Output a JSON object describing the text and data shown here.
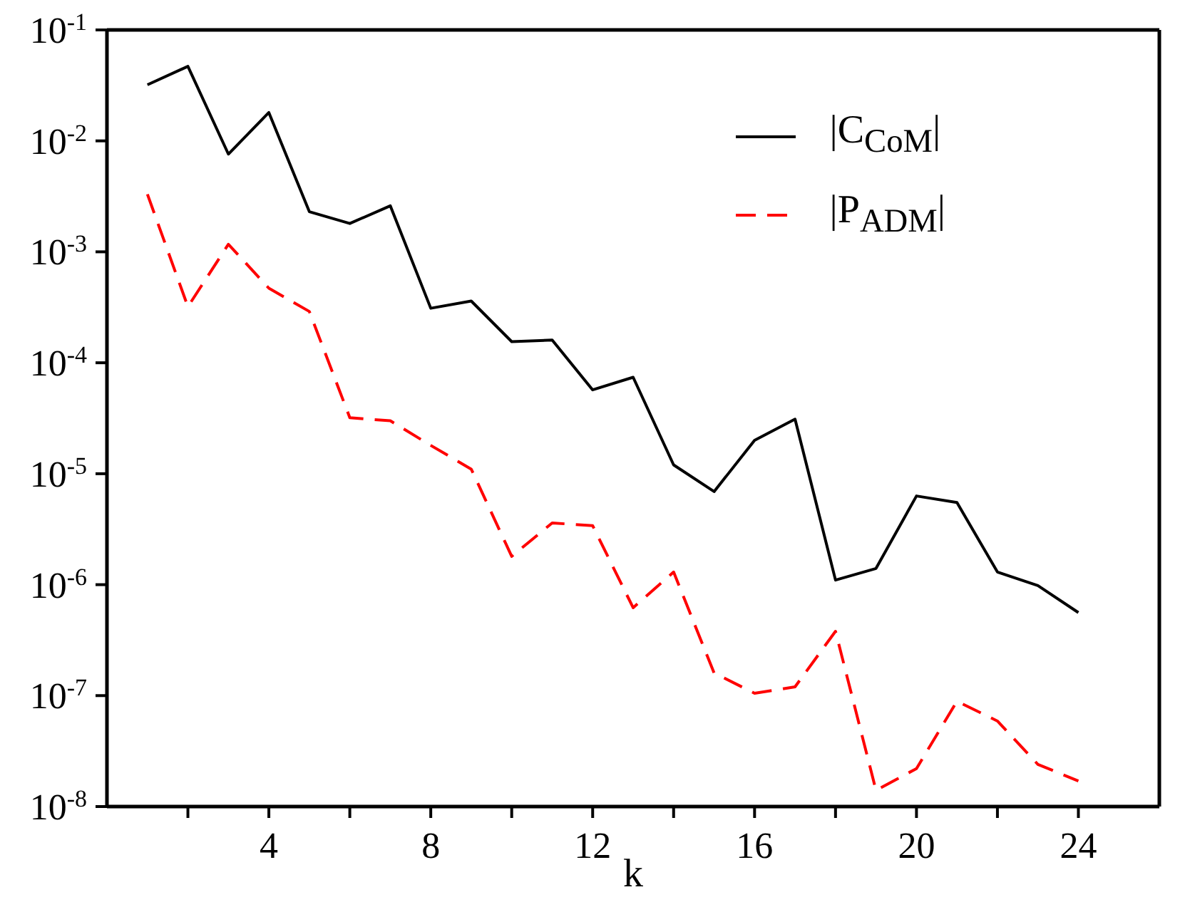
{
  "chart_data": {
    "type": "line",
    "xlabel": "k",
    "log": "y",
    "legend": "top right",
    "marker": "none",
    "x": [
      1,
      2,
      3,
      4,
      5,
      6,
      7,
      8,
      9,
      10,
      11,
      12,
      13,
      14,
      15,
      16,
      17,
      18,
      19,
      20,
      21,
      22,
      23,
      24
    ],
    "xlim": [
      0,
      26
    ],
    "xticks": [
      {
        "value": 2,
        "label": null
      },
      4,
      {
        "value": 6,
        "label": null
      },
      8,
      {
        "value": 10,
        "label": null
      },
      12,
      {
        "value": 14,
        "label": null
      },
      16,
      {
        "value": 18,
        "label": null
      },
      20,
      {
        "value": 22,
        "label": null
      },
      24
    ],
    "ylim": [
      1e-08,
      0.1
    ],
    "yticks": [
      {
        "value": 1e-08,
        "label": "10$^{-8}$"
      },
      {
        "value": 1e-07,
        "label": "10$^{-7}$"
      },
      {
        "value": 1e-06,
        "label": "10$^{-6}$"
      },
      {
        "value": 1e-05,
        "label": "10$^{-5}$"
      },
      {
        "value": 0.0001,
        "label": "10$^{-4}$"
      },
      {
        "value": 0.001,
        "label": "10$^{-3}$"
      },
      {
        "value": 0.01,
        "label": "10$^{-2}$"
      },
      {
        "value": 0.1,
        "label": "10$^{-1}$"
      }
    ],
    "series": [
      {
        "name": "|C$_{CoM}$|",
        "color": "#000000",
        "line_style": "solid",
        "values": [
          0.032,
          0.047,
          0.0076,
          0.018,
          0.0023,
          0.0018,
          0.0026,
          0.00031,
          0.00036,
          0.000155,
          0.00016,
          5.7e-05,
          7.4e-05,
          1.2e-05,
          6.9e-06,
          2e-05,
          3.1e-05,
          1.1e-06,
          1.4e-06,
          6.3e-06,
          5.5e-06,
          1.3e-06,
          9.8e-07,
          5.6e-07
        ]
      },
      {
        "name": "|P$_{ADM}$|",
        "color": "#ff0000",
        "line_style": "dashed",
        "values": [
          0.0033,
          0.00032,
          0.00117,
          0.00047,
          0.00029,
          3.2e-05,
          3e-05,
          1.8e-05,
          1.1e-05,
          1.8e-06,
          3.6e-06,
          3.4e-06,
          6.2e-07,
          1.3e-06,
          1.6e-07,
          1.05e-07,
          1.2e-07,
          3.8e-07,
          1.4e-08,
          2.2e-08,
          8.9e-08,
          5.9e-08,
          2.4e-08,
          1.7e-08
        ]
      }
    ]
  }
}
